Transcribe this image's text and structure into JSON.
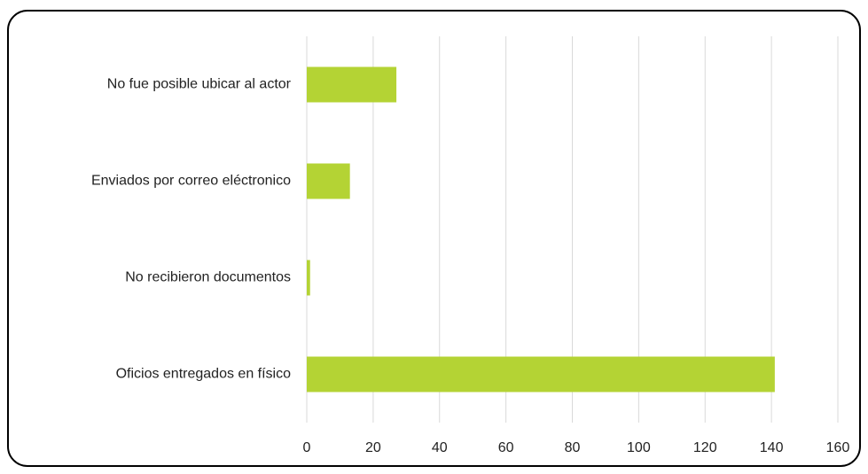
{
  "chart_data": {
    "type": "bar",
    "orientation": "horizontal",
    "categories": [
      "No fue posible ubicar al actor",
      "Enviados por correo eléctronico",
      "No recibieron documentos",
      "Oficios entregados en físico"
    ],
    "values": [
      27,
      13,
      1,
      141
    ],
    "color": "#b4d334",
    "xlim": [
      0,
      160
    ],
    "xticks": [
      0,
      20,
      40,
      60,
      80,
      100,
      120,
      140,
      160
    ],
    "grid": true
  }
}
